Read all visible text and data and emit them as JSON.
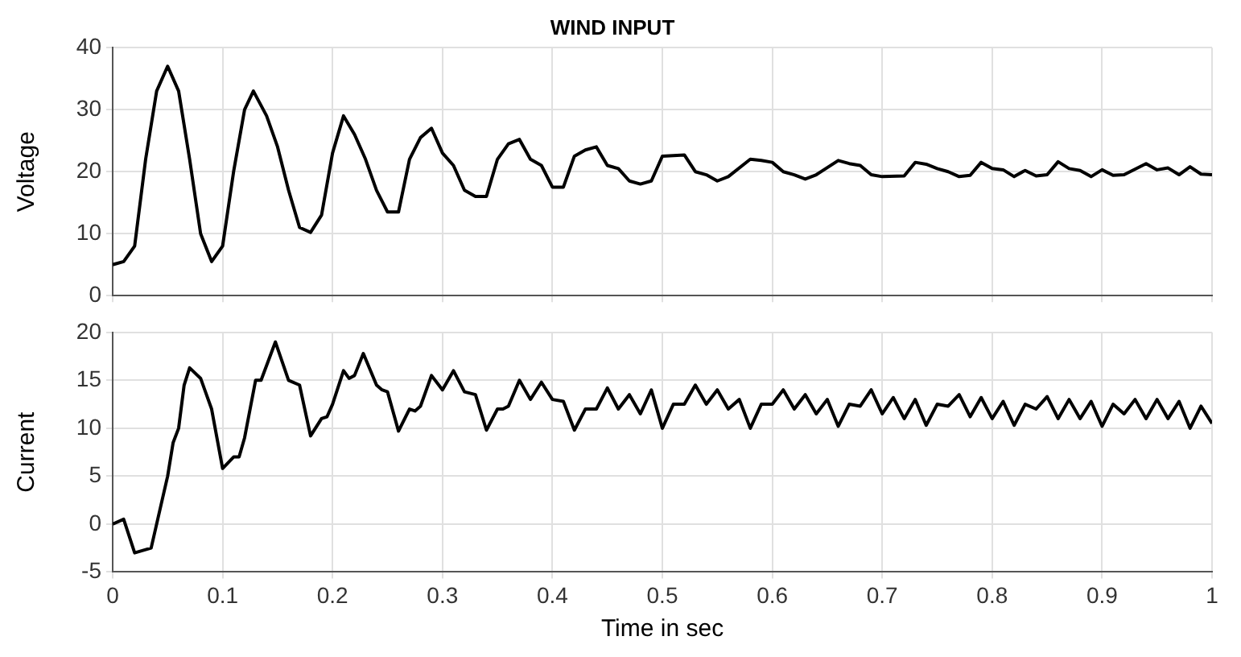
{
  "chart_data": [
    {
      "type": "line",
      "title": "WIND INPUT",
      "ylabel": "Voltage",
      "xlim": [
        0,
        1
      ],
      "xticks": [
        0,
        0.1,
        0.2,
        0.3,
        0.4,
        0.5,
        0.6,
        0.7,
        0.8,
        0.9,
        1
      ],
      "ylim": [
        0,
        40
      ],
      "yticks": [
        0,
        10,
        20,
        30,
        40
      ],
      "tick_labels": "y",
      "grid": true,
      "legend": false,
      "marker": "none",
      "x": [
        0,
        0.01,
        0.02,
        0.03,
        0.04,
        0.05,
        0.06,
        0.07,
        0.08,
        0.09,
        0.1,
        0.11,
        0.12,
        0.128,
        0.14,
        0.15,
        0.16,
        0.17,
        0.18,
        0.19,
        0.2,
        0.21,
        0.22,
        0.23,
        0.24,
        0.25,
        0.26,
        0.27,
        0.28,
        0.29,
        0.3,
        0.31,
        0.32,
        0.33,
        0.34,
        0.35,
        0.36,
        0.37,
        0.38,
        0.39,
        0.4,
        0.41,
        0.42,
        0.43,
        0.44,
        0.45,
        0.46,
        0.47,
        0.48,
        0.49,
        0.5,
        0.52,
        0.53,
        0.54,
        0.55,
        0.56,
        0.58,
        0.59,
        0.6,
        0.61,
        0.62,
        0.63,
        0.64,
        0.66,
        0.67,
        0.68,
        0.69,
        0.7,
        0.72,
        0.73,
        0.74,
        0.75,
        0.76,
        0.77,
        0.78,
        0.79,
        0.8,
        0.81,
        0.82,
        0.83,
        0.84,
        0.85,
        0.86,
        0.87,
        0.88,
        0.89,
        0.9,
        0.91,
        0.92,
        0.94,
        0.95,
        0.96,
        0.97,
        0.98,
        0.99,
        1
      ],
      "series": [
        {
          "color": "#000000",
          "values": [
            5,
            5.5,
            8,
            22,
            33,
            37,
            33,
            22,
            10,
            5.5,
            8,
            20,
            30,
            33,
            29,
            24,
            17,
            11,
            10.2,
            13,
            23,
            29,
            26,
            22,
            17,
            13.5,
            13.5,
            22,
            25.5,
            27,
            23,
            21,
            17,
            16,
            16,
            22,
            24.5,
            25.2,
            22,
            21,
            17.5,
            17.5,
            22.5,
            23.5,
            24,
            21,
            20.5,
            18.5,
            18,
            18.5,
            22.5,
            22.7,
            20,
            19.5,
            18.5,
            19.2,
            22,
            21.8,
            21.5,
            20,
            19.5,
            18.8,
            19.5,
            21.8,
            21.3,
            21,
            19.5,
            19.2,
            19.3,
            21.5,
            21.2,
            20.5,
            20,
            19.2,
            19.4,
            21.5,
            20.5,
            20.3,
            19.2,
            20.2,
            19.3,
            19.5,
            21.6,
            20.5,
            20.2,
            19.2,
            20.3,
            19.4,
            19.5,
            21.3,
            20.3,
            20.6,
            19.5,
            20.8,
            19.6,
            19.5
          ]
        }
      ]
    },
    {
      "type": "line",
      "ylabel": "Current",
      "xlabel": "Time in sec",
      "xlim": [
        0,
        1
      ],
      "xticks": [
        0,
        0.1,
        0.2,
        0.3,
        0.4,
        0.5,
        0.6,
        0.7,
        0.8,
        0.9,
        1
      ],
      "ylim": [
        -5,
        20
      ],
      "yticks": [
        -5,
        0,
        5,
        10,
        15,
        20
      ],
      "grid": true,
      "legend": false,
      "marker": "none",
      "x": [
        0,
        0.01,
        0.02,
        0.035,
        0.04,
        0.05,
        0.055,
        0.06,
        0.065,
        0.07,
        0.08,
        0.09,
        0.1,
        0.11,
        0.115,
        0.12,
        0.13,
        0.135,
        0.148,
        0.16,
        0.17,
        0.18,
        0.19,
        0.195,
        0.2,
        0.21,
        0.215,
        0.22,
        0.228,
        0.24,
        0.245,
        0.25,
        0.26,
        0.27,
        0.275,
        0.28,
        0.29,
        0.3,
        0.31,
        0.32,
        0.33,
        0.34,
        0.35,
        0.355,
        0.36,
        0.37,
        0.38,
        0.39,
        0.4,
        0.41,
        0.42,
        0.43,
        0.44,
        0.45,
        0.46,
        0.47,
        0.48,
        0.49,
        0.5,
        0.51,
        0.52,
        0.53,
        0.54,
        0.55,
        0.56,
        0.57,
        0.58,
        0.59,
        0.6,
        0.61,
        0.62,
        0.63,
        0.64,
        0.65,
        0.66,
        0.67,
        0.68,
        0.69,
        0.7,
        0.71,
        0.72,
        0.73,
        0.74,
        0.75,
        0.76,
        0.77,
        0.78,
        0.79,
        0.8,
        0.81,
        0.82,
        0.83,
        0.84,
        0.85,
        0.86,
        0.87,
        0.88,
        0.89,
        0.9,
        0.91,
        0.92,
        0.93,
        0.94,
        0.95,
        0.96,
        0.97,
        0.98,
        0.99,
        1
      ],
      "series": [
        {
          "color": "#000000",
          "values": [
            0,
            0.5,
            -3,
            -2.5,
            0,
            5,
            8.5,
            10,
            14.5,
            16.3,
            15.2,
            12,
            5.8,
            7,
            7,
            9,
            15,
            15,
            19,
            15,
            14.5,
            9.2,
            11,
            11.2,
            12.5,
            16,
            15.2,
            15.5,
            17.8,
            14.5,
            14,
            13.8,
            9.7,
            12,
            11.8,
            12.3,
            15.5,
            14,
            16,
            13.8,
            13.5,
            9.8,
            12,
            12,
            12.3,
            15,
            13,
            14.8,
            13,
            12.8,
            9.8,
            12,
            12,
            14.2,
            12,
            13.5,
            11.5,
            14,
            10,
            12.5,
            12.5,
            14.5,
            12.5,
            14,
            12,
            13,
            10,
            12.5,
            12.5,
            14,
            12,
            13.5,
            11.5,
            13,
            10.2,
            12.5,
            12.3,
            14,
            11.5,
            13.2,
            11,
            13,
            10.3,
            12.5,
            12.3,
            13.5,
            11.2,
            13.2,
            11,
            12.8,
            10.3,
            12.5,
            12,
            13.3,
            11,
            13,
            11,
            12.8,
            10.2,
            12.5,
            11.5,
            13,
            11,
            13,
            11,
            12.8,
            10,
            12.3,
            10.5
          ]
        }
      ]
    }
  ]
}
